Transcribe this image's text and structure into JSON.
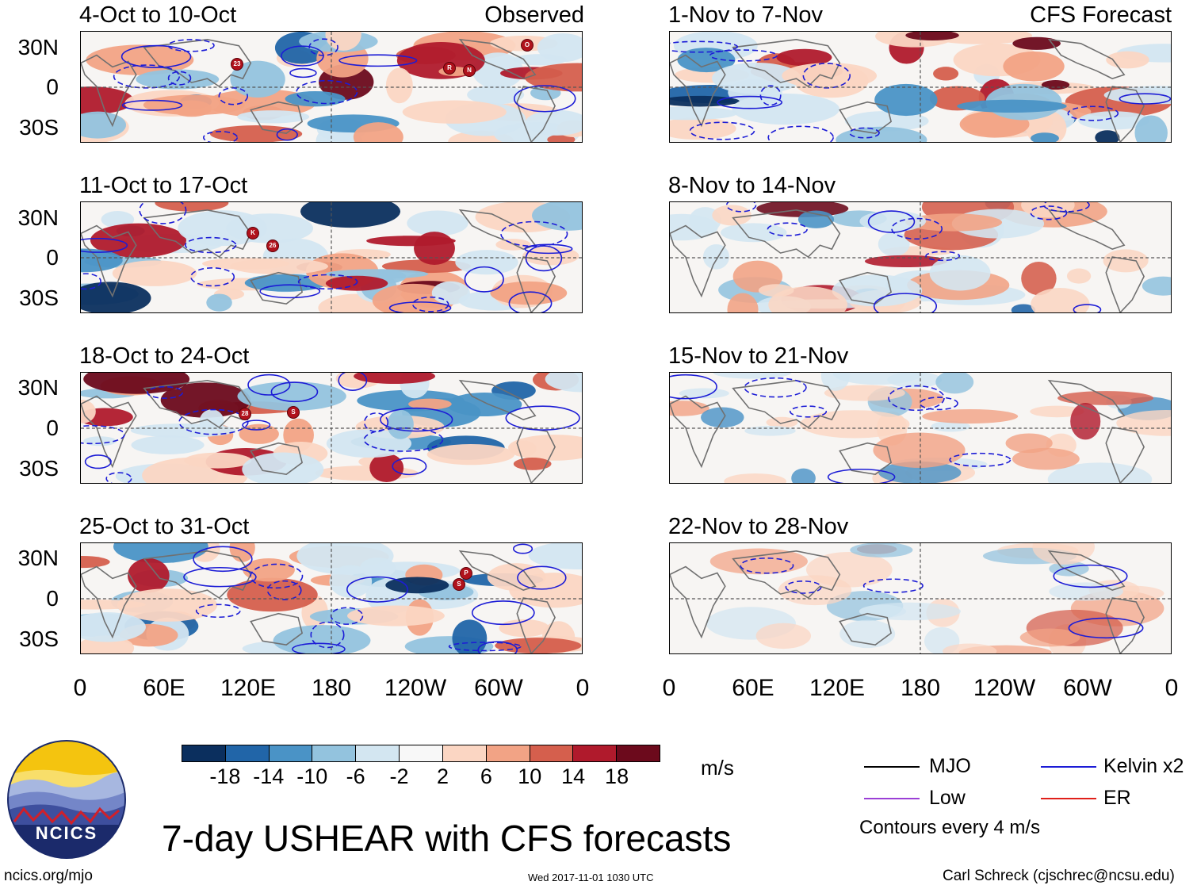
{
  "title": "7-day USHEAR with CFS forecasts",
  "lat_labels": [
    "30N",
    "0",
    "30S"
  ],
  "lon_labels": [
    "0",
    "60E",
    "120E",
    "180",
    "120W",
    "60W",
    "0"
  ],
  "observed_tag": "Observed",
  "forecast_tag": "CFS Forecast",
  "panels_left": [
    {
      "title": "4-Oct to 10-Oct"
    },
    {
      "title": "11-Oct to 17-Oct"
    },
    {
      "title": "18-Oct to 24-Oct"
    },
    {
      "title": "25-Oct to 31-Oct"
    }
  ],
  "panels_right": [
    {
      "title": "1-Nov to 7-Nov"
    },
    {
      "title": "8-Nov to 14-Nov"
    },
    {
      "title": "15-Nov to 21-Nov"
    },
    {
      "title": "22-Nov to 28-Nov"
    }
  ],
  "storm_markers": [
    {
      "panel": 0,
      "label": "23"
    },
    {
      "panel": 0,
      "label": "R"
    },
    {
      "panel": 0,
      "label": "N"
    },
    {
      "panel": 0,
      "label": "O"
    },
    {
      "panel": 1,
      "label": "K"
    },
    {
      "panel": 1,
      "label": "26"
    },
    {
      "panel": 2,
      "label": "28"
    },
    {
      "panel": 2,
      "label": "S"
    },
    {
      "panel": 3,
      "label": "P"
    },
    {
      "panel": 3,
      "label": "S"
    }
  ],
  "colorbar": {
    "labels": [
      "-18",
      "-14",
      "-10",
      "-6",
      "-2",
      "2",
      "6",
      "10",
      "14",
      "18"
    ],
    "colors": [
      "#0b2f5e",
      "#2165a8",
      "#4a93c6",
      "#93c3de",
      "#d3e6f1",
      "#f8f8f8",
      "#fbd6c3",
      "#f2a385",
      "#d55f4d",
      "#b01a2c",
      "#6c0a1c"
    ],
    "units": "m/s"
  },
  "legend": {
    "items": [
      {
        "label": "MJO",
        "color": "#000000"
      },
      {
        "label": "Kelvin x2",
        "color": "#1c1cd6"
      },
      {
        "label": "Low",
        "color": "#9b3fd6"
      },
      {
        "label": "ER",
        "color": "#e0201a"
      }
    ],
    "note": "Contours every 4 m/s"
  },
  "logo_text": "NCICS",
  "footer": {
    "left": "ncics.org/mjo",
    "center": "Wed 2017-11-01 1030 UTC",
    "right": "Carl Schreck (cjschrec@ncsu.edu)"
  }
}
